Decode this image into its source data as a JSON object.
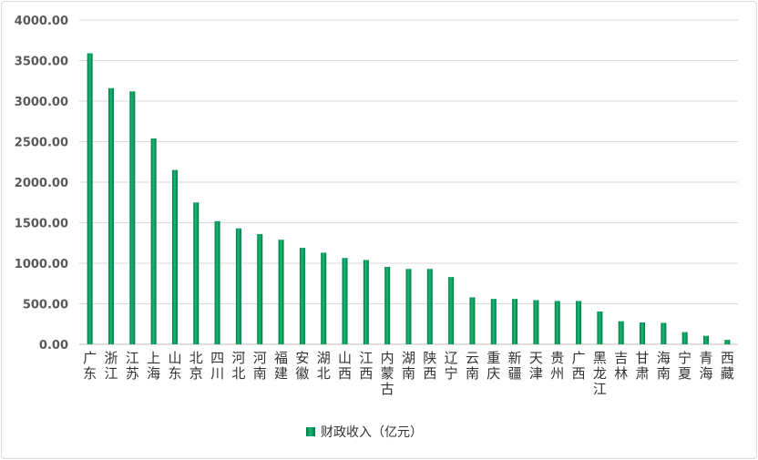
{
  "chart_data": {
    "type": "bar",
    "categories": [
      "广东",
      "浙江",
      "江苏",
      "上海",
      "山东",
      "北京",
      "四川",
      "河北",
      "河南",
      "福建",
      "安徽",
      "湖北",
      "山西",
      "江西",
      "内蒙古",
      "湖南",
      "陕西",
      "辽宁",
      "云南",
      "重庆",
      "新疆",
      "天津",
      "贵州",
      "广西",
      "黑龙江",
      "吉林",
      "甘肃",
      "海南",
      "宁夏",
      "青海",
      "西藏"
    ],
    "series": [
      {
        "name": "财政收入（亿元）",
        "values": [
          3590,
          3160,
          3120,
          2540,
          2150,
          1750,
          1520,
          1430,
          1360,
          1290,
          1190,
          1130,
          1065,
          1040,
          955,
          930,
          930,
          830,
          580,
          560,
          560,
          545,
          535,
          535,
          405,
          285,
          270,
          265,
          150,
          105,
          55
        ],
        "color": "#00a060"
      }
    ],
    "yticks": [
      "0.00",
      "500.00",
      "1000.00",
      "1500.00",
      "2000.00",
      "2500.00",
      "3000.00",
      "3500.00",
      "4000.00"
    ],
    "ylim": [
      0,
      4000
    ],
    "grid": true,
    "legend_position": "bottom"
  }
}
